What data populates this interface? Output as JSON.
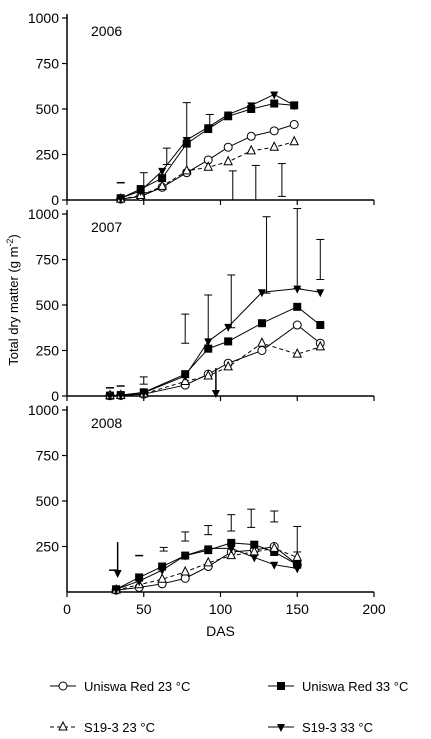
{
  "chart_data": {
    "type": "line",
    "ylabel": "Total  dry matter  (g m",
    "ylabel_unit_exp": "-2",
    "ylabel_unit_close": ")",
    "xlabel": "DAS",
    "x_ticks": [
      0,
      50,
      100,
      150,
      200
    ],
    "xlim": [
      0,
      200
    ],
    "panels": [
      {
        "year": "2006",
        "ylim": [
          0,
          1000
        ],
        "y_ticks": [
          0,
          250,
          500,
          750,
          1000
        ],
        "series": [
          {
            "name": "Uniswa Red  23 °C",
            "marker": "circle-open",
            "line": "solid",
            "x": [
              35,
              48,
              62,
              78,
              92,
              105,
              120,
              135,
              148
            ],
            "y": [
              5,
              20,
              70,
              150,
              220,
              290,
              350,
              380,
              415
            ]
          },
          {
            "name": "Uniswa Red  33 °C",
            "marker": "square-filled",
            "line": "solid",
            "x": [
              35,
              48,
              62,
              78,
              92,
              105,
              120,
              135,
              148
            ],
            "y": [
              10,
              60,
              120,
              310,
              390,
              460,
              500,
              530,
              520
            ]
          },
          {
            "name": "S19-3  23 °C",
            "marker": "triangle-up-open",
            "line": "dashed",
            "x": [
              35,
              48,
              62,
              78,
              92,
              105,
              120,
              135,
              148
            ],
            "y": [
              5,
              25,
              75,
              160,
              180,
              210,
              270,
              290,
              320
            ]
          },
          {
            "name": "S19-3  33 °C",
            "marker": "triangle-down-filled",
            "line": "solid",
            "x": [
              35,
              48,
              62,
              78,
              92,
              105,
              120,
              135,
              148
            ],
            "y": [
              10,
              50,
              160,
              330,
              400,
              470,
              520,
              580,
              520
            ]
          }
        ],
        "error_bars": [
          {
            "x": 35,
            "center": 95,
            "half": 0
          },
          {
            "x": 50,
            "center": 95,
            "half": 55
          },
          {
            "x": 65,
            "center": 240,
            "half": 45
          },
          {
            "x": 78,
            "center": 350,
            "half": 185
          },
          {
            "x": 93,
            "center": 440,
            "half": 30
          },
          {
            "x": 108,
            "center": 80,
            "half": 80
          },
          {
            "x": 123,
            "center": 95,
            "half": 95
          },
          {
            "x": 140,
            "center": 110,
            "half": 90
          }
        ],
        "arrow_x": null
      },
      {
        "year": "2007",
        "ylim": [
          0,
          1000
        ],
        "y_ticks": [
          0,
          250,
          500,
          750,
          1000
        ],
        "series": [
          {
            "name": "Uniswa Red  23 °C",
            "marker": "circle-open",
            "line": "solid",
            "x": [
              28,
              35,
              50,
              77,
              92,
              105,
              127,
              150,
              165
            ],
            "y": [
              2,
              3,
              10,
              60,
              120,
              180,
              250,
              390,
              290
            ]
          },
          {
            "name": "Uniswa Red  33 °C",
            "marker": "square-filled",
            "line": "solid",
            "x": [
              28,
              35,
              50,
              77,
              92,
              105,
              127,
              150,
              165
            ],
            "y": [
              2,
              5,
              20,
              120,
              260,
              300,
              400,
              490,
              390
            ]
          },
          {
            "name": "S19-3  23 °C",
            "marker": "triangle-up-open",
            "line": "dashed",
            "x": [
              28,
              35,
              50,
              77,
              92,
              105,
              127,
              150,
              165
            ],
            "y": [
              2,
              3,
              12,
              80,
              110,
              160,
              290,
              230,
              270
            ]
          },
          {
            "name": "S19-3  33 °C",
            "marker": "triangle-down-filled",
            "line": "solid",
            "x": [
              28,
              35,
              50,
              77,
              92,
              105,
              127,
              150,
              165
            ],
            "y": [
              2,
              5,
              18,
              110,
              300,
              380,
              570,
              590,
              570
            ]
          }
        ],
        "error_bars": [
          {
            "x": 28,
            "center": 45,
            "half": 0
          },
          {
            "x": 35,
            "center": 55,
            "half": 0
          },
          {
            "x": 50,
            "center": 85,
            "half": 20
          },
          {
            "x": 77,
            "center": 370,
            "half": 80
          },
          {
            "x": 92,
            "center": 415,
            "half": 140
          },
          {
            "x": 107,
            "center": 520,
            "half": 145
          },
          {
            "x": 130,
            "center": 775,
            "half": 210
          },
          {
            "x": 150,
            "center": 810,
            "half": 220
          },
          {
            "x": 165,
            "center": 750,
            "half": 110
          }
        ],
        "arrow_x": 97
      },
      {
        "year": "2008",
        "ylim": [
          0,
          1000
        ],
        "y_ticks": [
          250,
          500,
          750,
          1000
        ],
        "series": [
          {
            "name": "Uniswa Red  23 °C",
            "marker": "circle-open",
            "line": "solid",
            "x": [
              32,
              47,
              62,
              77,
              92,
              107,
              122,
              135,
              150
            ],
            "y": [
              10,
              25,
              45,
              75,
              140,
              220,
              230,
              250,
              150
            ]
          },
          {
            "name": "Uniswa Red  33 °C",
            "marker": "square-filled",
            "line": "solid",
            "x": [
              32,
              47,
              62,
              77,
              92,
              107,
              122,
              135,
              150
            ],
            "y": [
              15,
              80,
              140,
              200,
              230,
              270,
              260,
              220,
              150
            ]
          },
          {
            "name": "S19-3  23 °C",
            "marker": "triangle-up-open",
            "line": "dashed",
            "x": [
              32,
              47,
              62,
              77,
              92,
              107,
              122,
              135,
              150
            ],
            "y": [
              10,
              40,
              70,
              110,
              160,
              200,
              220,
              240,
              190
            ]
          },
          {
            "name": "S19-3  33 °C",
            "marker": "triangle-down-filled",
            "line": "solid",
            "x": [
              32,
              47,
              62,
              77,
              92,
              107,
              122,
              135,
              150
            ],
            "y": [
              15,
              60,
              120,
              200,
              240,
              240,
              190,
              150,
              130
            ]
          }
        ],
        "error_bars": [
          {
            "x": 30,
            "center": 120,
            "half": 0
          },
          {
            "x": 47,
            "center": 200,
            "half": 0
          },
          {
            "x": 63,
            "center": 235,
            "half": 10
          },
          {
            "x": 77,
            "center": 305,
            "half": 25
          },
          {
            "x": 92,
            "center": 340,
            "half": 25
          },
          {
            "x": 107,
            "center": 380,
            "half": 45
          },
          {
            "x": 120,
            "center": 405,
            "half": 50
          },
          {
            "x": 135,
            "center": 415,
            "half": 30
          },
          {
            "x": 150,
            "center": 290,
            "half": 70
          }
        ],
        "arrow_x": 33
      }
    ],
    "legend": [
      {
        "label": "Uniswa Red  23 °C",
        "marker": "circle-open",
        "line": "solid"
      },
      {
        "label": "Uniswa Red  33 °C",
        "marker": "square-filled",
        "line": "solid"
      },
      {
        "label": "S19-3  23 °C",
        "marker": "triangle-up-open",
        "line": "dashed"
      },
      {
        "label": "S19-3  33 °C",
        "marker": "triangle-down-filled",
        "line": "solid"
      }
    ],
    "legend_placement": "bottom",
    "grid": false
  }
}
